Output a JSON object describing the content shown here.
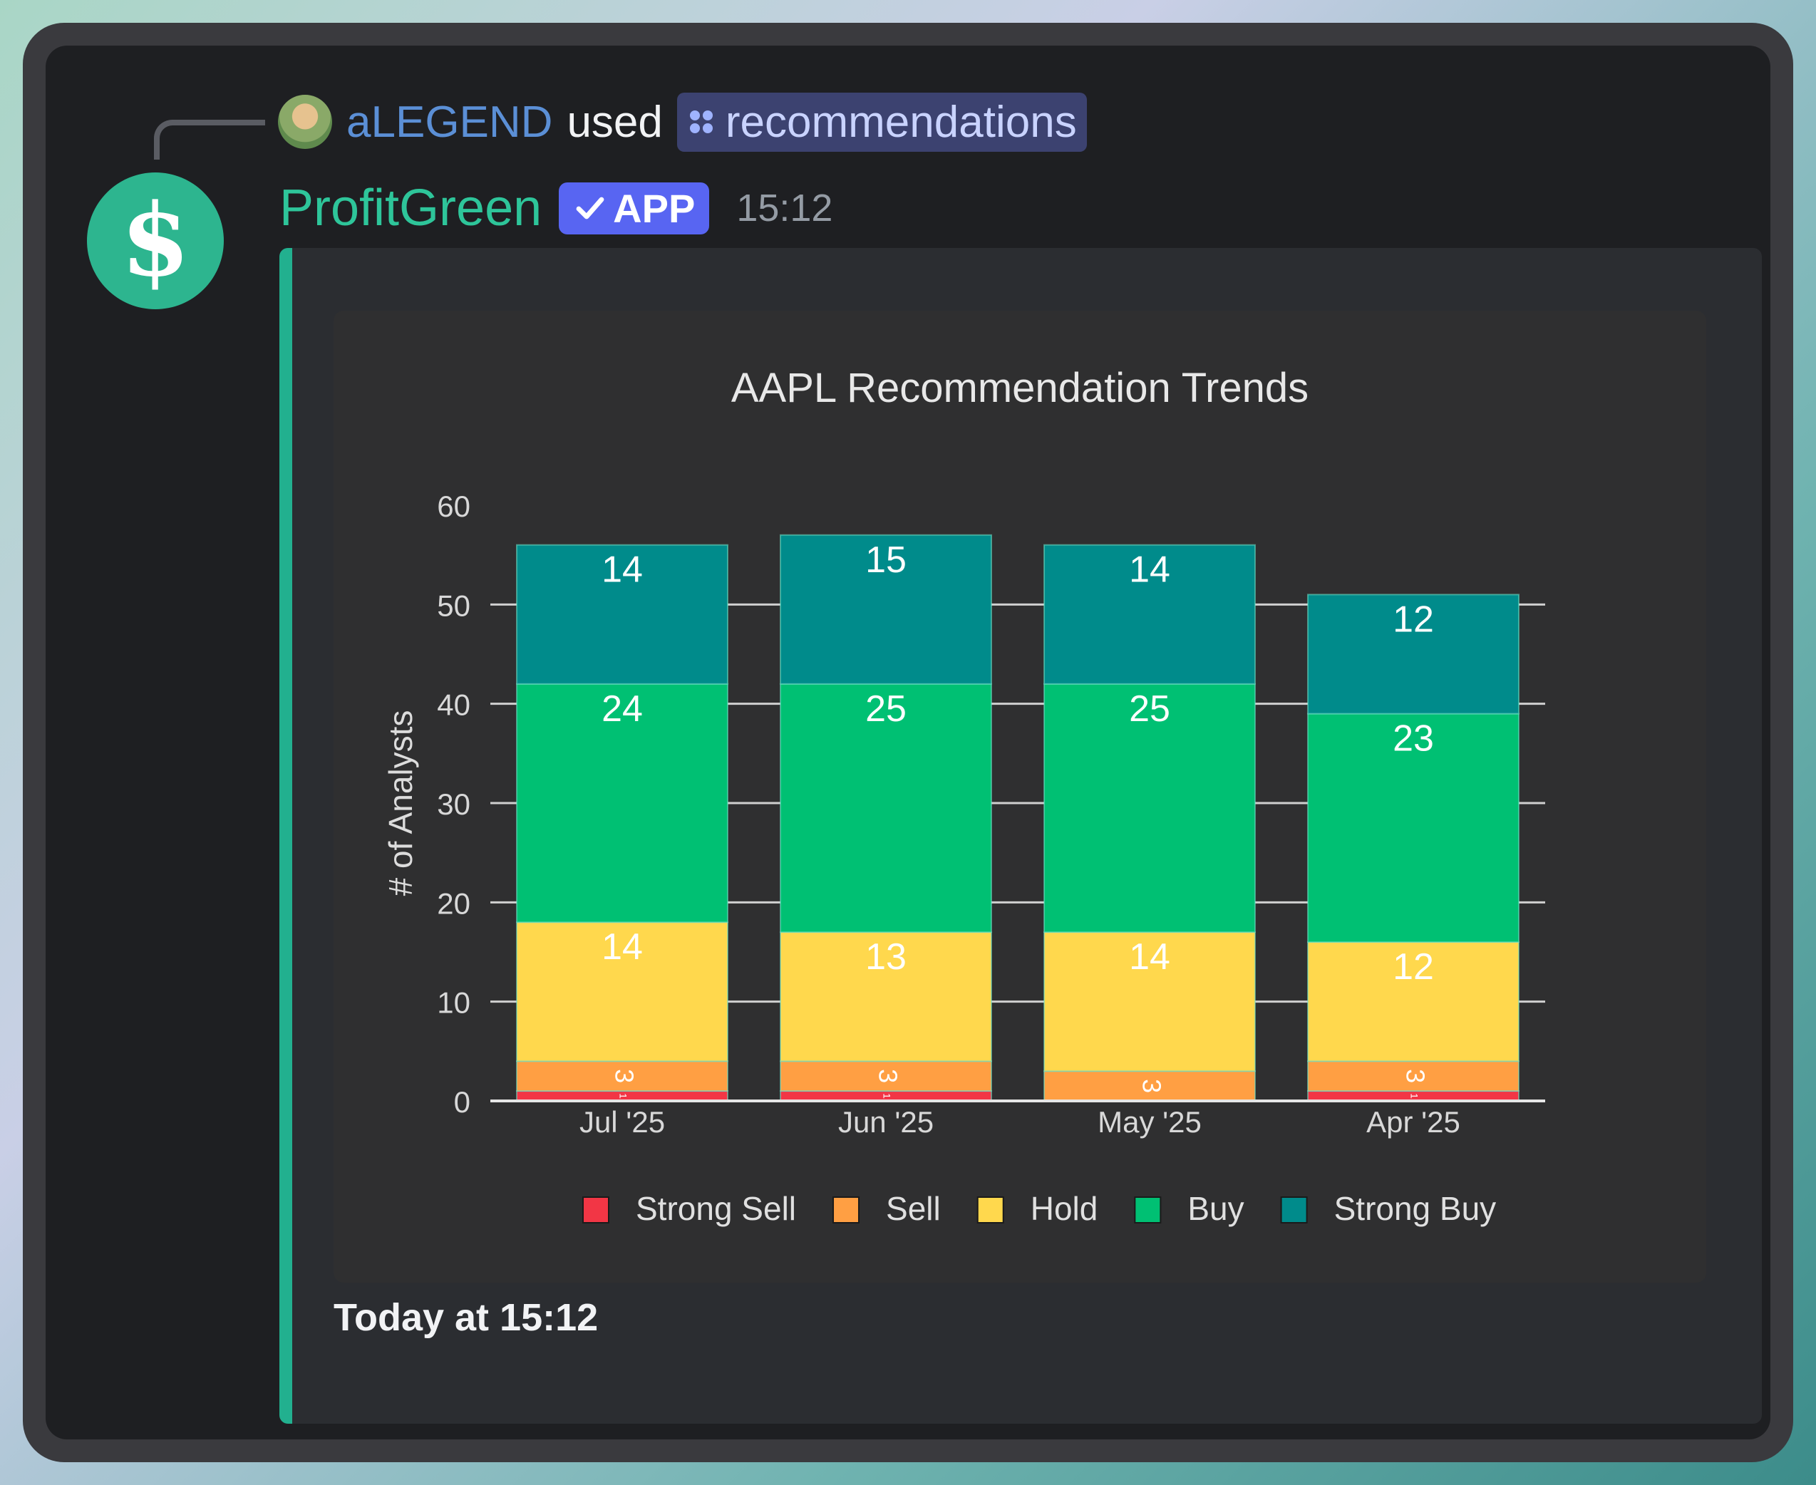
{
  "reply": {
    "user": "aLEGEND",
    "used": "used",
    "command": "recommendations"
  },
  "message": {
    "bot_name": "ProfitGreen",
    "avatar_symbol": "$",
    "badge": "APP",
    "time": "15:12"
  },
  "embed": {
    "footer": "Today at 15:12",
    "accent": "#22b08f"
  },
  "chart_data": {
    "type": "bar",
    "stacked": true,
    "title": "AAPL Recommendation Trends",
    "xlabel": "",
    "ylabel": "# of Analysts",
    "ylim": [
      0,
      60
    ],
    "yticks": [
      0,
      10,
      20,
      30,
      40,
      50,
      60
    ],
    "grid": true,
    "legend_position": "bottom",
    "categories": [
      "Jul '25",
      "Jun '25",
      "May '25",
      "Apr '25"
    ],
    "series": [
      {
        "name": "Strong Sell",
        "color": "#f23645",
        "values": [
          1,
          1,
          0,
          1
        ]
      },
      {
        "name": "Sell",
        "color": "#ff9f43",
        "values": [
          3,
          3,
          3,
          3
        ]
      },
      {
        "name": "Hold",
        "color": "#ffd84d",
        "values": [
          14,
          13,
          14,
          12
        ]
      },
      {
        "name": "Buy",
        "color": "#00c073",
        "values": [
          24,
          25,
          25,
          23
        ]
      },
      {
        "name": "Strong Buy",
        "color": "#008b8b",
        "values": [
          14,
          15,
          14,
          12
        ]
      }
    ]
  }
}
